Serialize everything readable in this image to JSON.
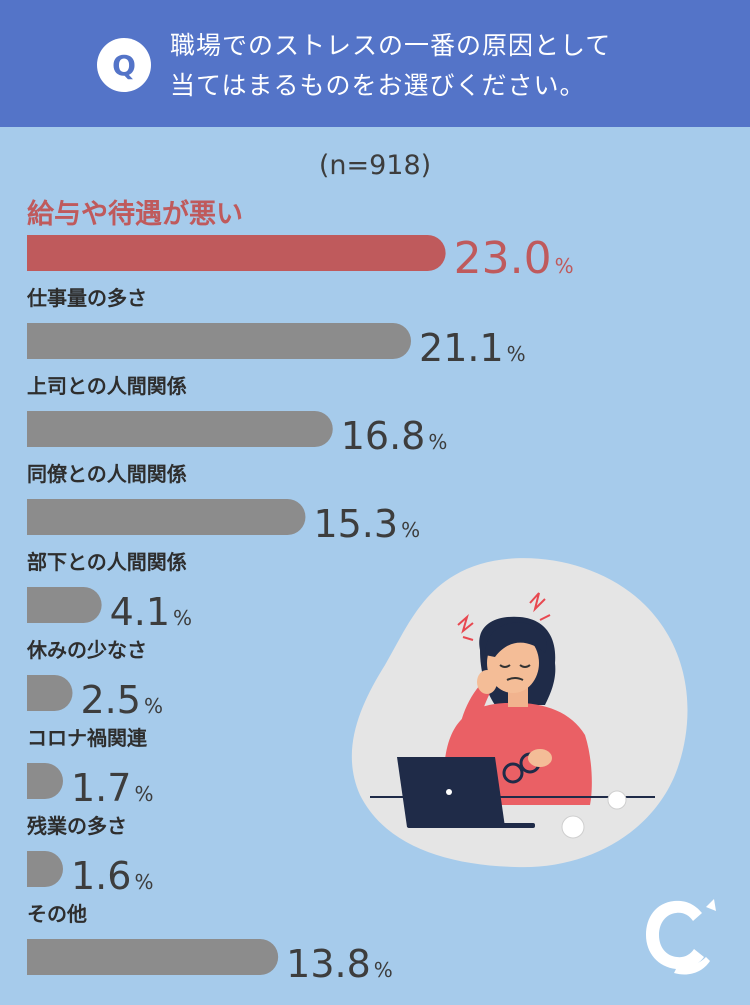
{
  "question": {
    "badge": "Q",
    "line1": "職場でのストレスの一番の原因として",
    "line2": "当てはまるものをお選びください。"
  },
  "sample_size": "(n=918)",
  "colors": {
    "header": "#5474c8",
    "background": "#a6cbeb",
    "highlight": "#bf5a5c",
    "bar": "#8c8c8c",
    "text": "#3d3d3d"
  },
  "chart_data": {
    "type": "bar",
    "orientation": "horizontal",
    "unit": "%",
    "categories": [
      "給与や待遇が悪い",
      "仕事量の多さ",
      "上司との人間関係",
      "同僚との人間関係",
      "部下との人間関係",
      "休みの少なさ",
      "コロナ禍関連",
      "残業の多さ",
      "その他"
    ],
    "values": [
      23.0,
      21.1,
      16.8,
      15.3,
      4.1,
      2.5,
      1.7,
      1.6,
      13.8
    ],
    "value_labels": [
      "23.0",
      "21.1",
      "16.8",
      "15.3",
      "4.1",
      "2.5",
      "1.7",
      "1.6",
      "13.8"
    ],
    "highlight_index": 0
  }
}
